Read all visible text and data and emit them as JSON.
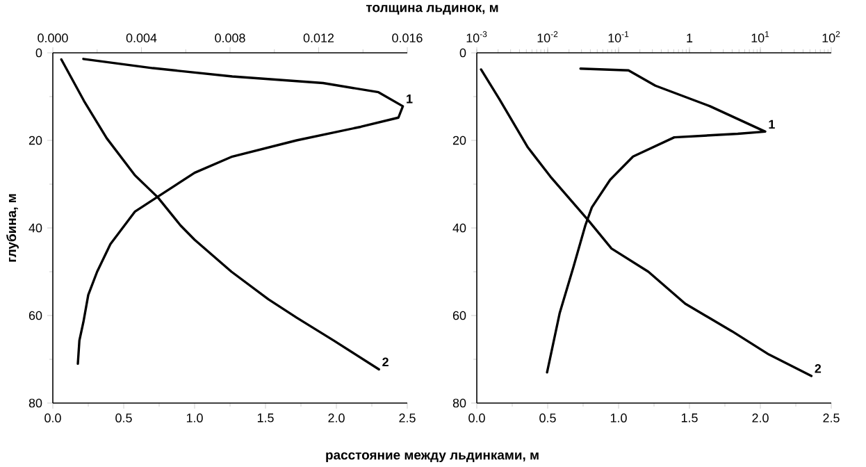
{
  "chart_data": [
    {
      "type": "line",
      "ylabel": "глубина, м",
      "xlabel": "расстояние между льдинками, м",
      "x2label": "толщина льдинок, м",
      "xlim": [
        0,
        2.5
      ],
      "xticks": [
        {
          "value": 0,
          "label": "0.0"
        },
        0.5,
        {
          "value": 1,
          "label": "1.0"
        },
        1.5,
        {
          "value": 2,
          "label": "2.0"
        },
        2.5
      ],
      "x2lim": [
        0,
        0.016
      ],
      "x2ticks": [
        {
          "value": 0,
          "label": "0.000"
        },
        0.004,
        0.008,
        0.012,
        0.016
      ],
      "ylim": [
        80,
        0
      ],
      "yticks": [
        0,
        20,
        40,
        60,
        80
      ],
      "series": [
        {
          "name": "1",
          "color": "#000000",
          "axis": "x2",
          "x": [
            0.00138,
            0.00452,
            0.0081,
            0.0122,
            0.0147,
            0.0158,
            0.0156,
            0.0139,
            0.011,
            0.0081,
            0.0064,
            0.005,
            0.0037,
            0.0026,
            0.002,
            0.0016,
            0.00138,
            0.0012,
            0.00113
          ],
          "values": [
            1.4,
            3.5,
            5.4,
            6.9,
            9,
            12.2,
            14.8,
            16.9,
            20,
            23.7,
            27.4,
            32,
            36.3,
            43.7,
            50,
            55.3,
            61.5,
            65.7,
            71
          ]
        },
        {
          "name": "2",
          "color": "#000000",
          "x": [
            0.06,
            0.22,
            0.38,
            0.58,
            0.74,
            0.9,
            1.0,
            1.26,
            1.52,
            1.72,
            1.98,
            2.3
          ],
          "values": [
            1.5,
            11,
            19.5,
            28,
            33,
            39.4,
            42.7,
            50,
            56.3,
            60.5,
            65.7,
            72.3
          ]
        }
      ]
    },
    {
      "type": "line",
      "log": "x2",
      "xlim": [
        0,
        2.5
      ],
      "xticks": [
        {
          "value": 0,
          "label": "0.0"
        },
        0.5,
        {
          "value": 1,
          "label": "1.0"
        },
        1.5,
        {
          "value": 2,
          "label": "2.0"
        },
        2.5
      ],
      "x2lim": [
        0.001,
        100
      ],
      "x2ticks": [
        {
          "value": 0.001,
          "label": "10$^{-3}$"
        },
        {
          "value": 0.01,
          "label": "10$^{-2}$"
        },
        {
          "value": 0.1,
          "label": "10$^{-1}$"
        },
        1,
        {
          "value": 10,
          "label": "10$^{1}$"
        },
        {
          "value": 100,
          "label": "10$^{2}$"
        }
      ],
      "ylim": [
        80,
        0
      ],
      "yticks": [
        0,
        20,
        40,
        60,
        80
      ],
      "series": [
        {
          "name": "1",
          "color": "#000000",
          "axis": "x2",
          "x": [
            0.029,
            0.138,
            0.33,
            1.95,
            11.7,
            4.8,
            0.61,
            0.16,
            0.076,
            0.042,
            0.034,
            0.023,
            0.0148,
            0.0098
          ],
          "values": [
            3.6,
            4,
            7.5,
            12.2,
            18,
            18.5,
            19.3,
            23.7,
            29,
            35.3,
            39.4,
            49,
            59.4,
            73
          ]
        },
        {
          "name": "2",
          "color": "#000000",
          "x": [
            0.03,
            0.16,
            0.36,
            0.52,
            0.79,
            0.95,
            1.21,
            1.47,
            1.8,
            2.06,
            2.36
          ],
          "values": [
            3.8,
            10.6,
            21.6,
            28.3,
            38.4,
            44.7,
            50,
            57.3,
            63.6,
            68.9,
            73.8
          ]
        }
      ]
    }
  ]
}
